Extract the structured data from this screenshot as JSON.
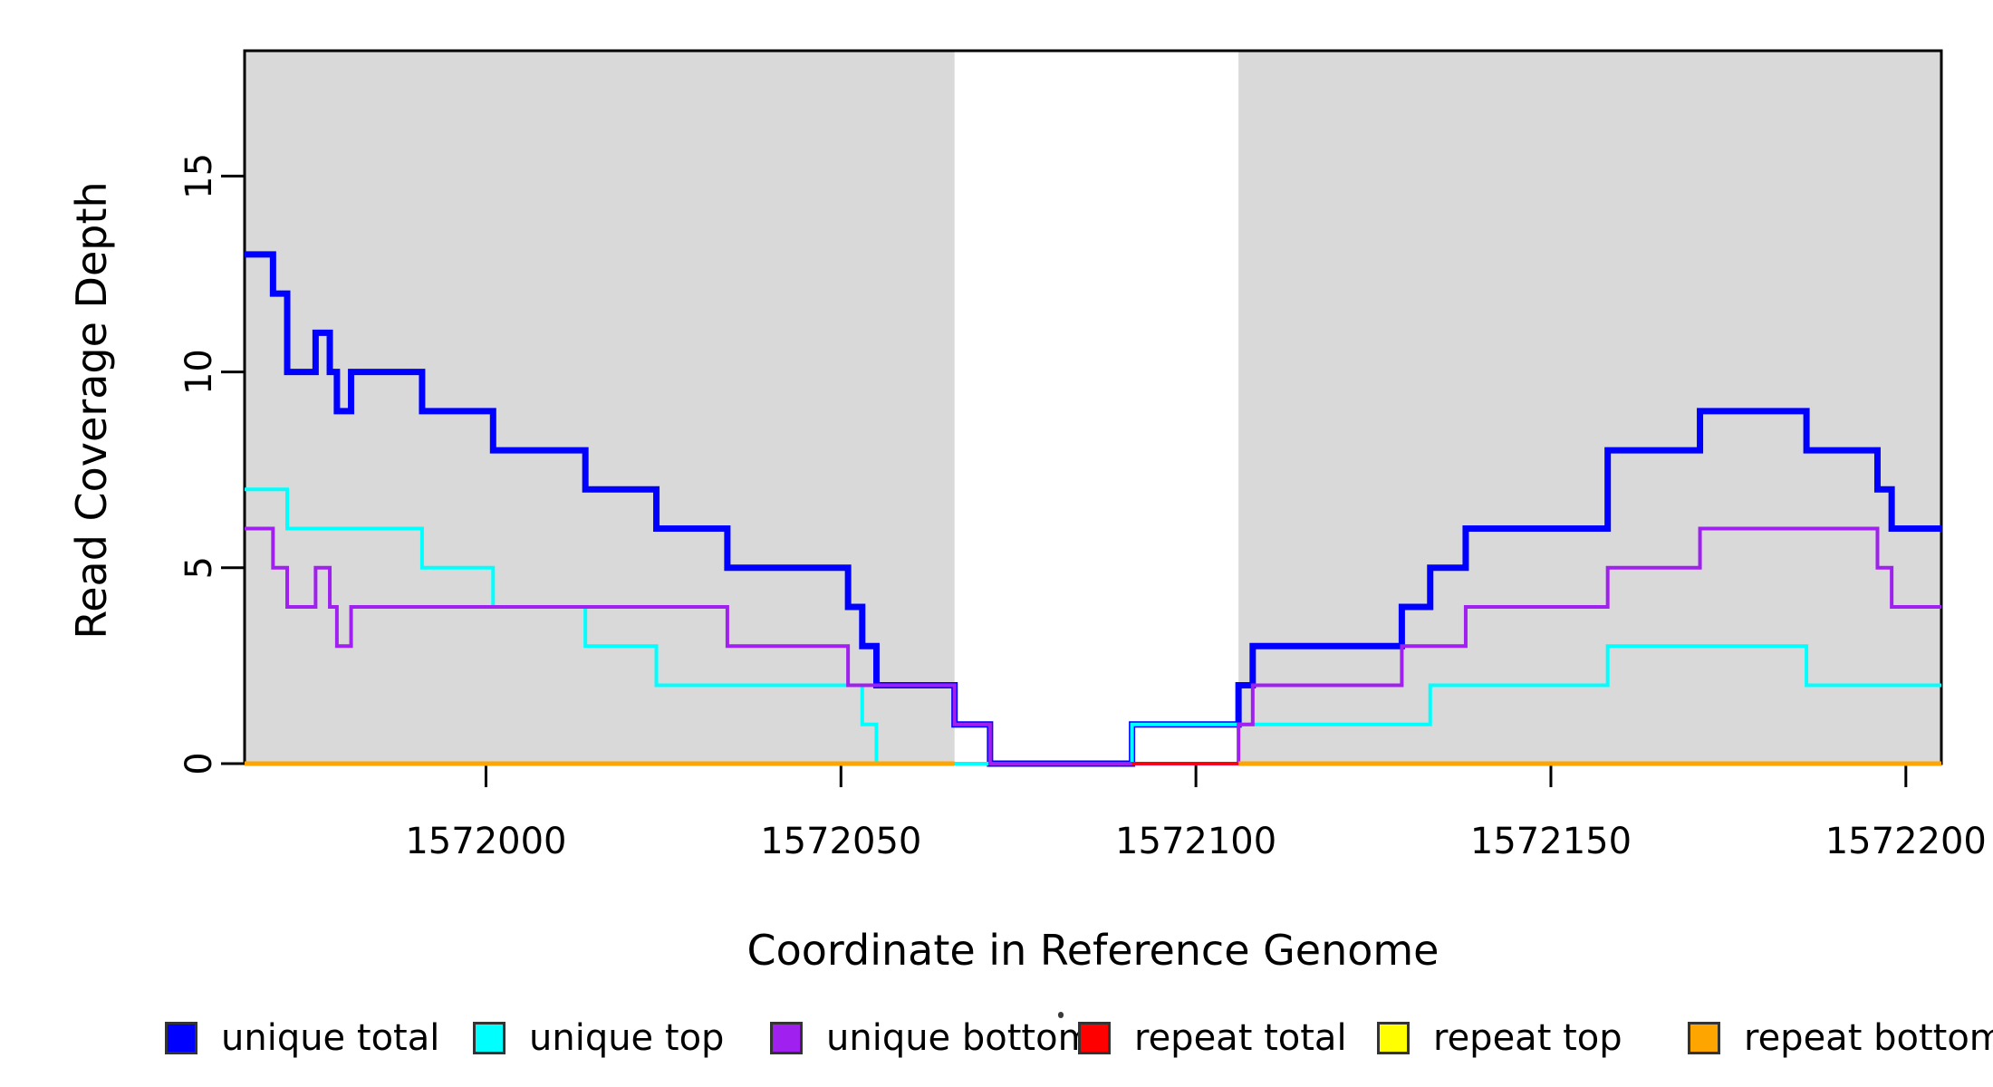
{
  "page": {
    "background": "#ffffff"
  },
  "chart_data": {
    "type": "line",
    "subtype": "step-coverage-plot",
    "title": "",
    "xlabel": "Coordinate in Reference Genome",
    "ylabel": "Read Coverage Depth",
    "xlim": [
      1571966,
      1572205
    ],
    "ylim": [
      0,
      18.2
    ],
    "x_ticks": [
      1572000,
      1572050,
      1572100,
      1572150,
      1572200
    ],
    "y_ticks": [
      0,
      5,
      10,
      15
    ],
    "grid": false,
    "legend_position": "bottom",
    "plot_background": "#ffffff",
    "box_color": "#000000",
    "shaded_regions": [
      {
        "name": "repeat-region-left",
        "from": 1571966,
        "to": 1572066,
        "color": "#d9d9d9"
      },
      {
        "name": "repeat-region-right",
        "from": 1572106,
        "to": 1572205,
        "color": "#d9d9d9"
      }
    ],
    "series": [
      {
        "name": "unique total",
        "color": "#0000ff",
        "width": 7,
        "points": [
          [
            1571966,
            13
          ],
          [
            1571970,
            12
          ],
          [
            1571972,
            10
          ],
          [
            1571976,
            11
          ],
          [
            1571978,
            10
          ],
          [
            1571979,
            9
          ],
          [
            1571981,
            10
          ],
          [
            1571991,
            9
          ],
          [
            1572001,
            8
          ],
          [
            1572014,
            7
          ],
          [
            1572024,
            6
          ],
          [
            1572034,
            5
          ],
          [
            1572051,
            4
          ],
          [
            1572053,
            3
          ],
          [
            1572055,
            2
          ],
          [
            1572066,
            1
          ],
          [
            1572071,
            0
          ],
          [
            1572091,
            1
          ],
          [
            1572106,
            2
          ],
          [
            1572108,
            3
          ],
          [
            1572129,
            4
          ],
          [
            1572133,
            5
          ],
          [
            1572138,
            6
          ],
          [
            1572158,
            8
          ],
          [
            1572171,
            9
          ],
          [
            1572186,
            8
          ],
          [
            1572196,
            7
          ],
          [
            1572198,
            6
          ]
        ]
      },
      {
        "name": "unique top",
        "color": "#00ffff",
        "width": 4,
        "points": [
          [
            1571966,
            7
          ],
          [
            1571972,
            6
          ],
          [
            1571991,
            5
          ],
          [
            1572001,
            4
          ],
          [
            1572014,
            3
          ],
          [
            1572024,
            2
          ],
          [
            1572053,
            1
          ],
          [
            1572055,
            0
          ],
          [
            1572091,
            1
          ],
          [
            1572133,
            2
          ],
          [
            1572158,
            3
          ],
          [
            1572186,
            2
          ]
        ]
      },
      {
        "name": "unique bottom",
        "color": "#a020f0",
        "width": 4,
        "points": [
          [
            1571966,
            6
          ],
          [
            1571970,
            5
          ],
          [
            1571972,
            4
          ],
          [
            1571976,
            5
          ],
          [
            1571978,
            4
          ],
          [
            1571979,
            3
          ],
          [
            1571981,
            4
          ],
          [
            1572034,
            3
          ],
          [
            1572051,
            2
          ],
          [
            1572066,
            1
          ],
          [
            1572071,
            0
          ],
          [
            1572106,
            1
          ],
          [
            1572108,
            2
          ],
          [
            1572129,
            3
          ],
          [
            1572138,
            4
          ],
          [
            1572158,
            5
          ],
          [
            1572171,
            6
          ],
          [
            1572196,
            5
          ],
          [
            1572198,
            4
          ]
        ]
      },
      {
        "name": "repeat total",
        "color": "#ff0000",
        "width": 3.5,
        "points": [
          [
            1571966,
            0
          ]
        ],
        "visible_segments": [
          [
            1572091,
            1572106
          ]
        ]
      },
      {
        "name": "repeat top",
        "color": "#ffff00",
        "width": 4,
        "points": [
          [
            1571966,
            0
          ]
        ],
        "visible_segments": []
      },
      {
        "name": "repeat bottom",
        "color": "#ffa500",
        "width": 5,
        "points": [
          [
            1571966,
            0
          ]
        ],
        "visible_segments": [
          [
            1571966,
            1572066
          ],
          [
            1572106,
            1572205
          ]
        ]
      }
    ],
    "draw_order": [
      0,
      1,
      2,
      4,
      3,
      5
    ]
  }
}
